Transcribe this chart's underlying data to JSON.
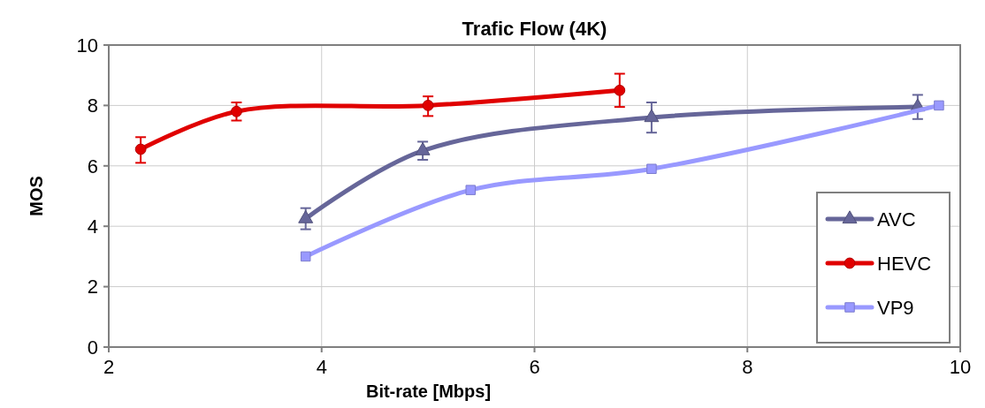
{
  "chart_data": {
    "type": "line",
    "title": "Trafic Flow (4K)",
    "xlabel": "Bit-rate [Mbps]",
    "ylabel": "MOS",
    "xlim": [
      2,
      10
    ],
    "xticks": [
      2,
      4,
      6,
      8,
      10
    ],
    "ylim": [
      0,
      10
    ],
    "yticks": [
      0,
      2,
      4,
      6,
      8,
      10
    ],
    "grid": true,
    "legend": "bottom right",
    "line_style": "solid",
    "series": [
      {
        "name": "AVC",
        "color": "#666699",
        "marker": "triangle",
        "x": [
          3.85,
          4.95,
          7.1,
          9.6
        ],
        "values": [
          4.25,
          6.5,
          7.6,
          7.95
        ],
        "errors": [
          [
            3.9,
            4.6
          ],
          [
            6.2,
            6.8
          ],
          [
            7.1,
            8.1
          ],
          [
            7.55,
            8.35
          ]
        ]
      },
      {
        "name": "HEVC",
        "color": "#e00000",
        "marker": "circle",
        "x": [
          2.3,
          3.2,
          5.0,
          6.8
        ],
        "values": [
          6.55,
          7.8,
          8.0,
          8.5
        ],
        "errors": [
          [
            6.1,
            6.95
          ],
          [
            7.5,
            8.1
          ],
          [
            7.65,
            8.3
          ],
          [
            7.95,
            9.05
          ]
        ]
      },
      {
        "name": "VP9",
        "color": "#9999ff",
        "marker": "square",
        "x": [
          3.85,
          5.4,
          7.1,
          9.8
        ],
        "values": [
          3.0,
          5.2,
          5.9,
          8.0
        ]
      }
    ]
  }
}
